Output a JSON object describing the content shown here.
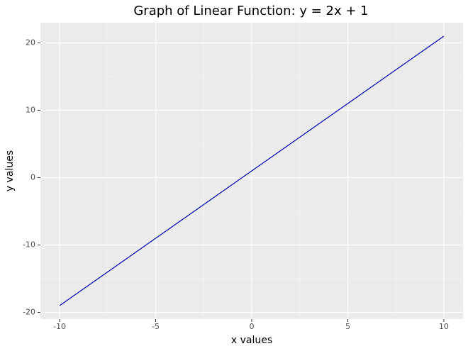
{
  "chart_data": {
    "type": "line",
    "title": "Graph of Linear Function: y = 2x + 1",
    "x_label": "x values",
    "y_label": "y values",
    "x": [
      -10,
      -9,
      -8,
      -7,
      -6,
      -5,
      -4,
      -3,
      -2,
      -1,
      0,
      1,
      2,
      3,
      4,
      5,
      6,
      7,
      8,
      9,
      10
    ],
    "series": [
      {
        "color": "#0000b2",
        "values": [
          -19,
          -17,
          -15,
          -13,
          -11,
          -9,
          -7,
          -5,
          -3,
          -1,
          1,
          3,
          5,
          7,
          9,
          11,
          13,
          15,
          17,
          19,
          21
        ]
      }
    ],
    "xlim": [
      -11,
      11
    ],
    "xticks": [
      -10,
      -5,
      0,
      5,
      10
    ],
    "ylim": [
      -21,
      23
    ],
    "yticks": [
      -20,
      -10,
      0,
      10,
      20
    ],
    "grid": true,
    "minor_grid": true
  }
}
